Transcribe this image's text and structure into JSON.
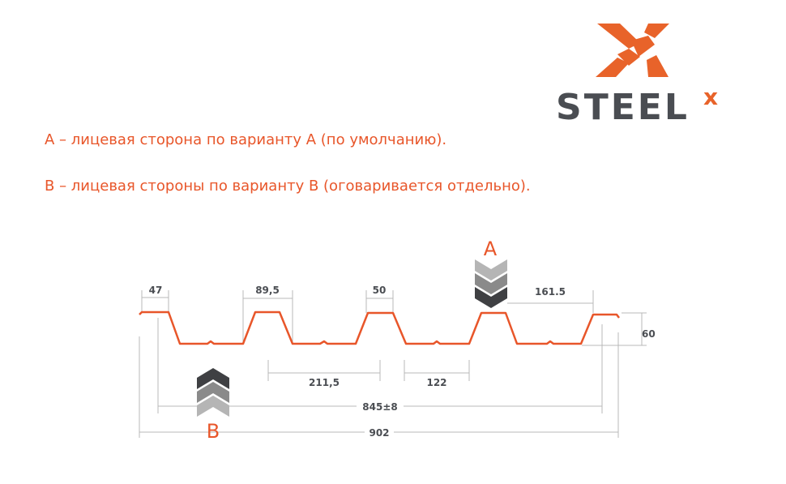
{
  "logo": {
    "text": "STEEL",
    "superscript": "x",
    "brand_color": "#e8632a",
    "text_color": "#4a4d52"
  },
  "notes": [
    "A – лицевая сторона по варианту А (по умолчанию).",
    "В – лицевая стороны по варианту В (оговаривается отдельно)."
  ],
  "diagram": {
    "profile_color": "#e8562a",
    "side_a_label": "A",
    "side_b_label": "B",
    "dimensions": {
      "d47": "47",
      "d89": "89,5",
      "d50": "50",
      "d161": "161.5",
      "d211": "211,5",
      "d122": "122",
      "d845": "845±8",
      "d902": "902",
      "d60": "60"
    }
  }
}
